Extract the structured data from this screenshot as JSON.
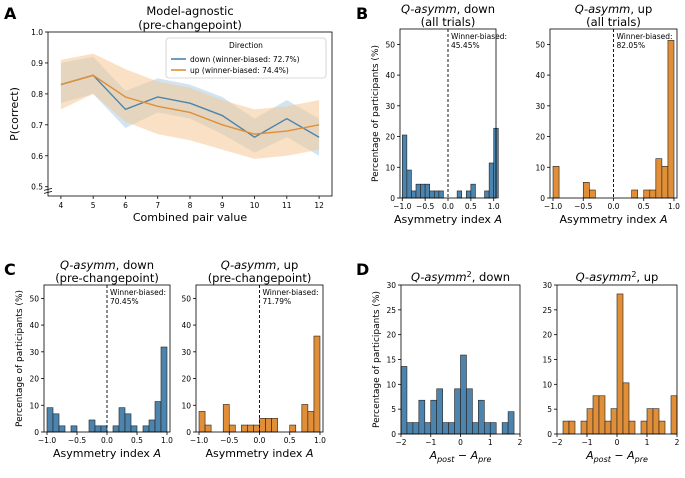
{
  "panels": {
    "A": "A",
    "B": "B",
    "C": "C",
    "D": "D"
  },
  "colors": {
    "down": "#4c84ad",
    "up": "#e08f38",
    "down_fill": "#a9cde6",
    "up_fill": "#f5c995"
  },
  "chart_data": [
    {
      "id": "A",
      "type": "line",
      "title": "Model-agnostic",
      "subtitle": "(pre-changepoint)",
      "xlabel": "Combined pair value",
      "ylabel": "P(correct)",
      "x": [
        4,
        5,
        6,
        7,
        8,
        9,
        10,
        11,
        12
      ],
      "xticks": [
        "4",
        "5",
        "6",
        "7",
        "8",
        "9",
        "10",
        "11",
        "12"
      ],
      "yticks": [
        "0.5",
        "0.6",
        "0.7",
        "0.8",
        "0.9",
        "1.0"
      ],
      "ylim": [
        0.47,
        1.0
      ],
      "xlim": [
        3.6,
        12.4
      ],
      "legend_title": "Direction",
      "legend_position": "top-right",
      "series": [
        {
          "name": "down (winner-biased: 72.7%)",
          "key": "down",
          "values": [
            0.83,
            0.86,
            0.75,
            0.79,
            0.77,
            0.73,
            0.66,
            0.72,
            0.66
          ],
          "lower": [
            0.77,
            0.8,
            0.69,
            0.74,
            0.72,
            0.67,
            0.61,
            0.66,
            0.6
          ],
          "upper": [
            0.9,
            0.92,
            0.81,
            0.85,
            0.83,
            0.79,
            0.72,
            0.78,
            0.72
          ]
        },
        {
          "name": "up (winner-biased: 74.4%)",
          "key": "up",
          "values": [
            0.83,
            0.86,
            0.79,
            0.76,
            0.74,
            0.7,
            0.67,
            0.68,
            0.7
          ],
          "lower": [
            0.75,
            0.8,
            0.71,
            0.67,
            0.65,
            0.62,
            0.59,
            0.6,
            0.62
          ],
          "upper": [
            0.91,
            0.93,
            0.88,
            0.84,
            0.82,
            0.78,
            0.75,
            0.76,
            0.78
          ]
        }
      ]
    },
    {
      "id": "B-down",
      "type": "bar",
      "title_html": "Q-asymm",
      "title_rest": ", down",
      "subtitle": "(all trials)",
      "xlabel": "Asymmetry index",
      "xlabel_italic": "A",
      "ylabel": "Percentage of participants (%)",
      "xlim": [
        -1.05,
        1.05
      ],
      "ylim": [
        0,
        55
      ],
      "yticks": [
        0,
        10,
        20,
        30,
        40,
        50
      ],
      "xticks": [
        -1.0,
        -0.5,
        0.0,
        0.5,
        1.0
      ],
      "xtick_labels": [
        "−1.0",
        "−0.5",
        "0.0",
        "0.5",
        "1.0"
      ],
      "ann_label": "Winner-biased:",
      "ann_value": "45.45%",
      "color_key": "down",
      "bin_start": -1.0,
      "bin_width": 0.1,
      "values": [
        20.5,
        9.1,
        2.3,
        4.5,
        4.5,
        4.5,
        2.3,
        2.3,
        2.3,
        0,
        0,
        0,
        2.3,
        0,
        2.3,
        4.5,
        0,
        0,
        2.3,
        11.4,
        22.7
      ]
    },
    {
      "id": "B-up",
      "type": "bar",
      "title_html": "Q-asymm",
      "title_rest": ", up",
      "subtitle": "(all trials)",
      "xlabel": "Asymmetry index",
      "xlabel_italic": "A",
      "ylabel": "",
      "xlim": [
        -1.05,
        1.05
      ],
      "ylim": [
        0,
        55
      ],
      "yticks": [
        0,
        10,
        20,
        30,
        40,
        50
      ],
      "xticks": [
        -1.0,
        -0.5,
        0.0,
        0.5,
        1.0
      ],
      "xtick_labels": [
        "−1.0",
        "−0.5",
        "0.0",
        "0.5",
        "1.0"
      ],
      "ann_label": "Winner-biased:",
      "ann_value": "82.05%",
      "color_key": "up",
      "bin_start": -1.0,
      "bin_width": 0.1,
      "values": [
        10.3,
        0,
        0,
        0,
        0,
        5.1,
        2.6,
        0,
        0,
        0,
        0,
        0,
        0,
        2.6,
        0,
        2.6,
        2.6,
        12.8,
        10.3,
        51.3
      ]
    },
    {
      "id": "C-down",
      "type": "bar",
      "title_html": "Q-asymm",
      "title_rest": ", down",
      "subtitle": "(pre-changepoint)",
      "xlabel": "Asymmetry index",
      "xlabel_italic": "A",
      "ylabel": "Percentage of participants (%)",
      "xlim": [
        -1.05,
        1.05
      ],
      "ylim": [
        0,
        55
      ],
      "yticks": [
        0,
        10,
        20,
        30,
        40,
        50
      ],
      "xticks": [
        -1.0,
        -0.5,
        0.0,
        0.5,
        1.0
      ],
      "xtick_labels": [
        "−1.0",
        "−0.5",
        "0.0",
        "0.5",
        "1.0"
      ],
      "ann_label": "Winner-biased:",
      "ann_value": "70.45%",
      "color_key": "down",
      "bin_start": -1.0,
      "bin_width": 0.1,
      "values": [
        9.1,
        6.8,
        2.3,
        0,
        2.3,
        0,
        0,
        4.5,
        2.3,
        2.3,
        0,
        2.3,
        9.1,
        6.8,
        2.3,
        0,
        2.3,
        4.5,
        11.4,
        31.8
      ]
    },
    {
      "id": "C-up",
      "type": "bar",
      "title_html": "Q-asymm",
      "title_rest": ", up",
      "subtitle": "(pre-changepoint)",
      "xlabel": "Asymmetry index",
      "xlabel_italic": "A",
      "ylabel": "",
      "xlim": [
        -1.05,
        1.05
      ],
      "ylim": [
        0,
        55
      ],
      "yticks": [
        0,
        10,
        20,
        30,
        40,
        50
      ],
      "xticks": [
        -1.0,
        -0.5,
        0.0,
        0.5,
        1.0
      ],
      "xtick_labels": [
        "−1.0",
        "−0.5",
        "0.0",
        "0.5",
        "1.0"
      ],
      "ann_label": "Winner-biased:",
      "ann_value": "71.79%",
      "color_key": "up",
      "bin_start": -1.0,
      "bin_width": 0.1,
      "values": [
        7.7,
        2.6,
        0,
        0,
        10.3,
        2.6,
        0,
        2.6,
        2.6,
        2.6,
        5.1,
        5.1,
        5.1,
        0,
        0,
        2.6,
        0,
        10.3,
        7.7,
        35.9
      ]
    },
    {
      "id": "D-down",
      "type": "bar",
      "title_html": "Q-asymm",
      "title_sup": "2",
      "title_rest": ", down",
      "subtitle": "",
      "xlabel": "A_post − A_pre",
      "ylabel": "Percentage of participants (%)",
      "xlim": [
        -2.0,
        2.0
      ],
      "ylim": [
        0,
        30
      ],
      "yticks": [
        0,
        5,
        10,
        15,
        20,
        25,
        30
      ],
      "xticks": [
        -2,
        -1,
        0,
        1,
        2
      ],
      "xtick_labels": [
        "−2",
        "−1",
        "0",
        "1",
        "2"
      ],
      "color_key": "down",
      "bin_start": -2.0,
      "bin_width": 0.2,
      "values": [
        13.6,
        2.3,
        2.3,
        6.8,
        2.3,
        6.8,
        9.1,
        2.3,
        2.3,
        9.1,
        15.9,
        9.1,
        2.3,
        6.8,
        2.3,
        2.3,
        0,
        2.3,
        4.5,
        0
      ]
    },
    {
      "id": "D-up",
      "type": "bar",
      "title_html": "Q-asymm",
      "title_sup": "2",
      "title_rest": ", up",
      "subtitle": "",
      "xlabel": "A_post − A_pre",
      "ylabel": "",
      "xlim": [
        -2.0,
        2.0
      ],
      "ylim": [
        0,
        30
      ],
      "yticks": [
        0,
        5,
        10,
        15,
        20,
        25,
        30
      ],
      "xticks": [
        -2,
        -1,
        0,
        1,
        2
      ],
      "xtick_labels": [
        "−2",
        "−1",
        "0",
        "1",
        "2"
      ],
      "color_key": "up",
      "bin_start": -2.0,
      "bin_width": 0.2,
      "values": [
        0,
        2.6,
        2.6,
        0,
        2.6,
        5.1,
        7.7,
        7.7,
        2.6,
        5.1,
        28.2,
        10.3,
        2.6,
        0,
        2.6,
        5.1,
        5.1,
        2.6,
        0,
        7.7
      ]
    }
  ]
}
